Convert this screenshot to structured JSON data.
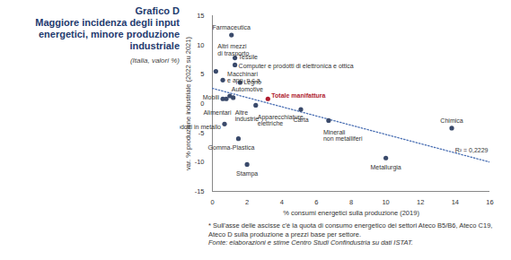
{
  "chart_data": {
    "type": "scatter",
    "title": "Grafico D",
    "subtitle": "Maggiore incidenza degli input energetici, minore produzione industriale",
    "unit_note": "(Italia, valori %)",
    "x_label": "% consumi energetici sulla produzione (2019)",
    "y_label": "var. % produzione industriale (2022 su 2021)",
    "points": [
      {
        "label": "Farmaceutica",
        "x": 1.1,
        "y": 11.7
      },
      {
        "label": "Altri mezzi\ndi trasporto",
        "x": 0.2,
        "y": 5.5
      },
      {
        "label": "Tessile",
        "x": 1.3,
        "y": 7.8
      },
      {
        "label": "Computer e prodotti di elettronica e ottica",
        "x": 1.3,
        "y": 6.6
      },
      {
        "label": "Macchinari\ne app. n.c.a.",
        "x": 0.6,
        "y": 4.0
      },
      {
        "label": "Legno",
        "x": 1.6,
        "y": 3.6
      },
      {
        "label": "Automotive",
        "x": 1.0,
        "y": 1.3
      },
      {
        "label": "Totale manifattura",
        "x": 3.2,
        "y": 0.8,
        "color": "#b01c2e"
      },
      {
        "label": "Mobili",
        "x": 0.6,
        "y": 0.8
      },
      {
        "label": "Alimentari",
        "x": 0.8,
        "y": 0.8
      },
      {
        "label": "Altre\nindustrie",
        "x": 1.2,
        "y": 1.0
      },
      {
        "label": "Apparecchiature\nelettriche",
        "x": 2.5,
        "y": -0.3
      },
      {
        "label": "Carta",
        "x": 5.1,
        "y": -1.0
      },
      {
        "label": "Minerali\nnon metalliferi",
        "x": 6.7,
        "y": -2.9
      },
      {
        "label": "Chimica",
        "x": 13.8,
        "y": -4.2
      },
      {
        "label": "Metallurgia",
        "x": 10.0,
        "y": -9.3
      },
      {
        "label": "Prodotti in metallo",
        "x": 0.7,
        "y": -3.5
      },
      {
        "label": "Gomma-Plastica",
        "x": 1.5,
        "y": -6.0
      },
      {
        "label": "Stampa",
        "x": 2.0,
        "y": -10.4
      }
    ],
    "color": "#3a4a6b",
    "trend": {
      "x": [
        0,
        16
      ],
      "y": [
        2.6,
        -10.0
      ],
      "color": "#4a6fb3",
      "line_style": "dotted"
    },
    "r2_label": "R² = 0,2229",
    "xlim": [
      0,
      16
    ],
    "xticks": [
      0,
      2,
      4,
      6,
      8,
      10,
      12,
      14,
      16
    ],
    "ylim": [
      -15,
      15
    ],
    "yticks": [
      -15,
      -10,
      -5,
      0,
      5,
      10,
      15
    ],
    "grid": false,
    "note": "* Sull'asse delle ascisse c'è la quota di consumo energetico dei settori Ateco B5/B6, Ateco C19, Ateco D sulla produzione a prezzi base per settore.",
    "source": "Fonte: elaborazioni e stime Centro Studi Confindustria su dati ISTAT."
  }
}
